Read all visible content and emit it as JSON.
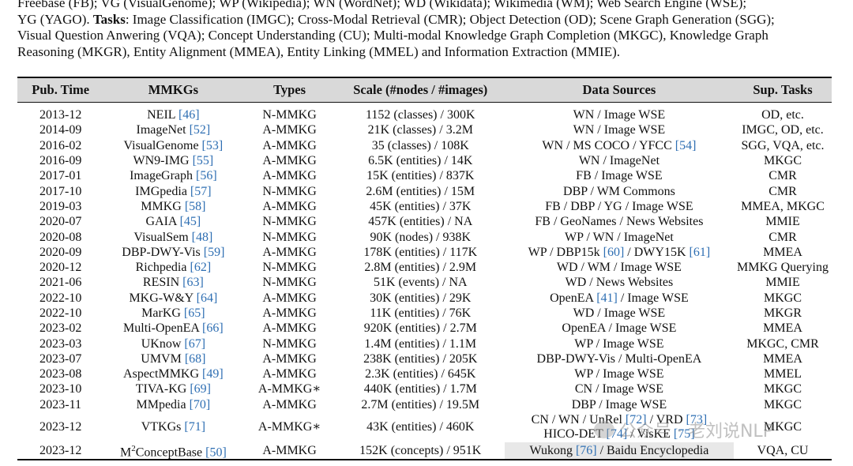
{
  "caption_lines": [
    "Freebase (FB); VG (VisualGenome); WP (Wikipedia); WN (WordNet); WD (Wikidata); Wikimedia (WM); Web Search Engine (WSE);",
    "YG (YAGO). |Tasks|: Image Classification (IMGC); Cross-Modal Retrieval (CMR); Object Detection (OD); Scene Graph Generation (SGG);",
    "Visual Question Anwering (VQA); Concept Understanding (CU); Multi-modal Knowledge Graph Completion (MKGC), Knowledge Graph",
    "Reasoning (MKGR), Entity Alignment (MMEA), Entity Linking (MMEL) and Information Extraction (MMIE)."
  ],
  "headers": [
    "Pub. Time",
    "MMKGs",
    "Types",
    "Scale (#nodes / #images)",
    "Data Sources",
    "Sup. Tasks"
  ],
  "rows": [
    {
      "time": "2013-12",
      "name": "NEIL",
      "ref": "[46]",
      "type": "N-MMKG",
      "scale": "1152 (classes) / 300K",
      "sources": "WN / Image WSE",
      "tasks": "OD, etc."
    },
    {
      "time": "2014-09",
      "name": "ImageNet",
      "ref": "[52]",
      "type": "A-MMKG",
      "scale": "21K (classes) / 3.2M",
      "sources": "WN / Image WSE",
      "tasks": "IMGC, OD, etc."
    },
    {
      "time": "2016-02",
      "name": "VisualGenome",
      "ref": "[53]",
      "type": "A-MMKG",
      "scale": "35 (classes) / 108K",
      "sources": "WN / MS COCO / YFCC [54]",
      "tasks": "SGG, VQA, etc."
    },
    {
      "time": "2016-09",
      "name": "WN9-IMG",
      "ref": "[55]",
      "type": "A-MMKG",
      "scale": "6.5K (entities) / 14K",
      "sources": "WN / ImageNet",
      "tasks": "MKGC"
    },
    {
      "time": "2017-01",
      "name": "ImageGraph",
      "ref": "[56]",
      "type": "A-MMKG",
      "scale": "15K (entities) / 837K",
      "sources": "FB / Image WSE",
      "tasks": "CMR"
    },
    {
      "time": "2017-10",
      "name": "IMGpedia",
      "ref": "[57]",
      "type": "N-MMKG",
      "scale": "2.6M (entities) / 15M",
      "sources": "DBP / WM Commons",
      "tasks": "CMR"
    },
    {
      "time": "2019-03",
      "name": "MMKG",
      "ref": "[58]",
      "type": "A-MMKG",
      "scale": "45K (entities) / 37K",
      "sources": "FB / DBP / YG / Image WSE",
      "tasks": "MMEA, MKGC"
    },
    {
      "time": "2020-07",
      "name": "GAIA",
      "ref": "[45]",
      "type": "N-MMKG",
      "scale": "457K (entities) / NA",
      "sources": "FB / GeoNames / News Websites",
      "tasks": "MMIE"
    },
    {
      "time": "2020-08",
      "name": "VisualSem",
      "ref": "[48]",
      "type": "N-MMKG",
      "scale": "90K (nodes) / 938K",
      "sources": "WP / WN / ImageNet",
      "tasks": "CMR"
    },
    {
      "time": "2020-09",
      "name": "DBP-DWY-Vis",
      "ref": "[59]",
      "type": "A-MMKG",
      "scale": "178K (entities) / 117K",
      "sources": "WP / DBP15k [60] / DWY15K [61]",
      "tasks": "MMEA"
    },
    {
      "time": "2020-12",
      "name": "Richpedia",
      "ref": "[62]",
      "type": "N-MMKG",
      "scale": "2.8M (entities) / 2.9M",
      "sources": "WD / WM / Image WSE",
      "tasks": "MMKG Querying"
    },
    {
      "time": "2021-06",
      "name": "RESIN",
      "ref": "[63]",
      "type": "N-MMKG",
      "scale": "51K (events) / NA",
      "sources": "WD / News Websites",
      "tasks": "MMIE"
    },
    {
      "time": "2022-10",
      "name": "MKG-W&Y",
      "ref": "[64]",
      "type": "A-MMKG",
      "scale": "30K (entities) / 29K",
      "sources": "OpenEA [41] / Image WSE",
      "tasks": "MKGC"
    },
    {
      "time": "2022-10",
      "name": "MarKG",
      "ref": "[65]",
      "type": "A-MMKG",
      "scale": "11K (entities) / 76K",
      "sources": "WD / Image WSE",
      "tasks": "MKGR"
    },
    {
      "time": "2023-02",
      "name": "Multi-OpenEA",
      "ref": "[66]",
      "type": "A-MMKG",
      "scale": "920K (entities) / 2.7M",
      "sources": "OpenEA / Image WSE",
      "tasks": "MMEA"
    },
    {
      "time": "2023-03",
      "name": "UKnow",
      "ref": "[67]",
      "type": "N-MMKG",
      "scale": "1.4M (entities) / 1.1M",
      "sources": "WP / Image WSE",
      "tasks": "MKGC, CMR"
    },
    {
      "time": "2023-07",
      "name": "UMVM",
      "ref": "[68]",
      "type": "A-MMKG",
      "scale": "238K (entities) / 205K",
      "sources": "DBP-DWY-Vis / Multi-OpenEA",
      "tasks": "MMEA"
    },
    {
      "time": "2023-08",
      "name": "AspectMMKG",
      "ref": "[49]",
      "type": "A-MMKG",
      "scale": "2.3K (entities) / 645K",
      "sources": "WP / Image WSE",
      "tasks": "MMEL"
    },
    {
      "time": "2023-10",
      "name": "TIVA-KG",
      "ref": "[69]",
      "type": "A-MMKG∗",
      "scale": "440K (entities) / 1.7M",
      "sources": "CN / Image WSE",
      "tasks": "MKGC"
    },
    {
      "time": "2023-11",
      "name": "MMpedia",
      "ref": "[70]",
      "type": "A-MMKG",
      "scale": "2.7M (entities) / 19.5M",
      "sources": "DBP / Image WSE",
      "tasks": "MKGC"
    },
    {
      "time": "2023-12",
      "name": "VTKGs",
      "ref": "[71]",
      "type": "A-MMKG∗",
      "scale": "43K (entities) / 460K",
      "sources": "CN / WN / UnRel [72] / VRD [73]",
      "sources2": "HICO-DET [74] / VisKE [75]",
      "tasks": "MKGC"
    },
    {
      "time": "2023-12",
      "name": "M²ConceptBase",
      "ref": "[50]",
      "type": "A-MMKG",
      "scale": "152K (concepts) / 951K",
      "sources": "Wukong [76] / Baidu Encyclopedia",
      "tasks": "VQA, CU"
    }
  ],
  "watermark": "公众号 · 老刘说NLP"
}
